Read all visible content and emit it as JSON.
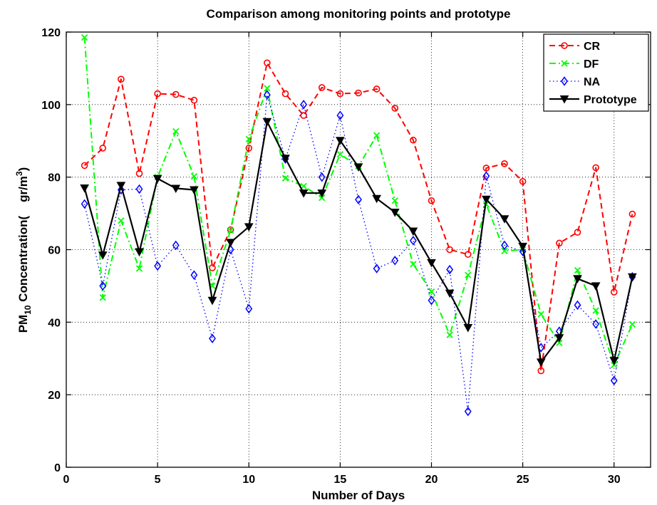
{
  "chart_data": {
    "type": "line",
    "title": "Comparison among monitoring points and prototype",
    "xlabel": "Number of Days",
    "ylabel": {
      "prefix": "PM",
      "subscript": "10",
      "middle": " Concentration(",
      "unit": "    gr/m",
      "superscript": "3",
      "suffix": ")"
    },
    "xlim": [
      0,
      32
    ],
    "ylim": [
      0,
      120
    ],
    "xticks": [
      0,
      5,
      10,
      15,
      20,
      25,
      30
    ],
    "yticks": [
      0,
      20,
      40,
      60,
      80,
      100,
      120
    ],
    "grid": true,
    "legend_position": "top-right",
    "x": [
      1,
      2,
      3,
      4,
      5,
      6,
      7,
      8,
      9,
      10,
      11,
      12,
      13,
      14,
      15,
      16,
      17,
      18,
      19,
      20,
      21,
      22,
      23,
      24,
      25,
      26,
      27,
      28,
      29,
      30,
      31
    ],
    "series": [
      {
        "name": "CR",
        "color": "#ff0000",
        "line_style": "dashed",
        "marker": "circle",
        "values": [
          83.2,
          88,
          107,
          81,
          103,
          102.8,
          101.2,
          55,
          65.5,
          88,
          111.5,
          103,
          97,
          104.7,
          103,
          103.2,
          104.3,
          99,
          90.2,
          73.5,
          60,
          58.7,
          82.5,
          83.7,
          78.8,
          26.6,
          61.8,
          64.8,
          82.6,
          48.3,
          69.8
        ]
      },
      {
        "name": "DF",
        "color": "#00ff00",
        "line_style": "dashdot",
        "marker": "x",
        "values": [
          118.5,
          46.8,
          68,
          54.8,
          80,
          92.6,
          80.2,
          50,
          65.3,
          90.5,
          104.5,
          79.7,
          77.5,
          74.3,
          86.3,
          83,
          91.5,
          73.5,
          56,
          48.4,
          36.5,
          53,
          72.5,
          59.6,
          60,
          42.2,
          34.3,
          54.3,
          43.2,
          28.2,
          39.4
        ]
      },
      {
        "name": "NA",
        "color": "#0000ff",
        "line_style": "dotted",
        "marker": "diamond",
        "values": [
          72.6,
          50,
          76.5,
          76.7,
          55.5,
          61.2,
          53,
          35.5,
          60,
          43.7,
          102.7,
          85,
          100,
          80,
          97,
          73.8,
          54.8,
          57,
          62.5,
          46,
          54.5,
          15.4,
          80.3,
          61.2,
          59.5,
          33,
          37.5,
          44.7,
          39.5,
          23.9,
          52.5
        ]
      },
      {
        "name": "Prototype",
        "color": "#000000",
        "line_style": "solid",
        "marker": "triangle-down",
        "values": [
          77,
          58.5,
          77.7,
          59.4,
          79.6,
          76.9,
          76.5,
          46,
          62,
          66.3,
          95.3,
          85.2,
          75.6,
          75.6,
          90.1,
          82.8,
          74.1,
          70.3,
          65.1,
          56.4,
          48,
          38.5,
          73.9,
          68.5,
          60.9,
          29,
          35.7,
          52,
          50,
          29.4,
          52.5
        ]
      }
    ]
  }
}
